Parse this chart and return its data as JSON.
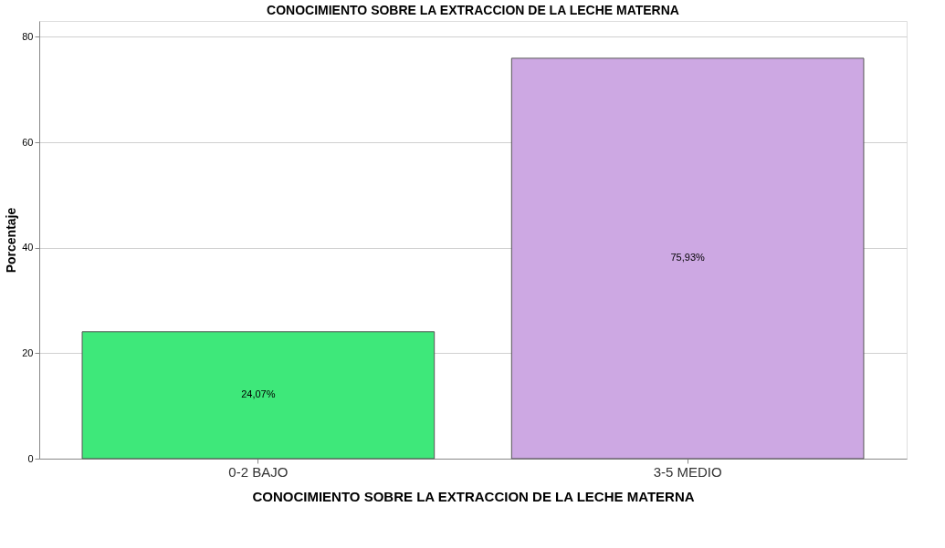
{
  "chart_data": {
    "type": "bar",
    "title": "CONOCIMIENTO SOBRE LA EXTRACCION DE LA LECHE MATERNA",
    "xlabel": "CONOCIMIENTO SOBRE LA EXTRACCION DE LA LECHE MATERNA",
    "ylabel": "Porcentaje",
    "categories": [
      "0-2 BAJO",
      "3-5 MEDIO"
    ],
    "values": [
      24.07,
      75.93
    ],
    "colors": [
      "#3ee87a",
      "#cda8e3"
    ],
    "value_labels": [
      "24,07%",
      "75,93%"
    ],
    "ylim": [
      0,
      83
    ],
    "yticks": [
      0,
      20,
      40,
      60,
      80
    ],
    "grid": "y"
  }
}
